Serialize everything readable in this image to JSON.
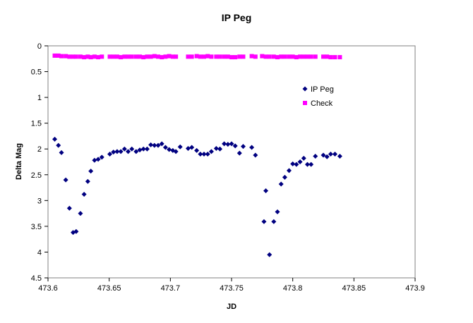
{
  "chart_data": {
    "type": "scatter",
    "title": "IP Peg",
    "xlabel": "JD",
    "ylabel": "Delta Mag",
    "xlim": [
      473.6,
      473.9
    ],
    "ylim": [
      0,
      4.5
    ],
    "y_inverted": true,
    "x_ticks": [
      473.6,
      473.65,
      473.7,
      473.75,
      473.8,
      473.85,
      473.9
    ],
    "x_tick_labels": [
      "473.6",
      "473.65",
      "473.7",
      "473.75",
      "473.8",
      "473.85",
      "473.9"
    ],
    "y_ticks": [
      0,
      0.5,
      1,
      1.5,
      2,
      2.5,
      3,
      3.5,
      4,
      4.5
    ],
    "y_tick_labels": [
      "0",
      "0.5",
      "1",
      "1.5",
      "2",
      "2.5",
      "3",
      "3.5",
      "4",
      "4.5"
    ],
    "grid": false,
    "legend_position": "right",
    "series": [
      {
        "name": "IP Peg",
        "color": "#000080",
        "marker": "diamond",
        "points": [
          [
            473.6055,
            1.81
          ],
          [
            473.6085,
            1.93
          ],
          [
            473.611,
            2.07
          ],
          [
            473.6145,
            2.6
          ],
          [
            473.6175,
            3.15
          ],
          [
            473.6205,
            3.62
          ],
          [
            473.623,
            3.6
          ],
          [
            473.6265,
            3.25
          ],
          [
            473.6295,
            2.88
          ],
          [
            473.6325,
            2.63
          ],
          [
            473.635,
            2.43
          ],
          [
            473.638,
            2.22
          ],
          [
            473.641,
            2.2
          ],
          [
            473.644,
            2.16
          ],
          [
            473.6505,
            2.1
          ],
          [
            473.6535,
            2.06
          ],
          [
            473.6565,
            2.05
          ],
          [
            473.6595,
            2.05
          ],
          [
            473.6625,
            2.0
          ],
          [
            473.6655,
            2.05
          ],
          [
            473.6685,
            2.0
          ],
          [
            473.672,
            2.05
          ],
          [
            473.675,
            2.02
          ],
          [
            473.678,
            2.0
          ],
          [
            473.681,
            2.0
          ],
          [
            473.684,
            1.92
          ],
          [
            473.687,
            1.93
          ],
          [
            473.69,
            1.93
          ],
          [
            473.693,
            1.9
          ],
          [
            473.696,
            1.97
          ],
          [
            473.699,
            2.01
          ],
          [
            473.702,
            2.03
          ],
          [
            473.7045,
            2.05
          ],
          [
            473.708,
            1.96
          ],
          [
            473.7145,
            1.99
          ],
          [
            473.7175,
            1.97
          ],
          [
            473.7215,
            2.03
          ],
          [
            473.7245,
            2.1
          ],
          [
            473.7275,
            2.1
          ],
          [
            473.7305,
            2.1
          ],
          [
            473.7335,
            2.05
          ],
          [
            473.7375,
            1.99
          ],
          [
            473.7405,
            2.0
          ],
          [
            473.744,
            1.9
          ],
          [
            473.747,
            1.91
          ],
          [
            473.75,
            1.9
          ],
          [
            473.753,
            1.94
          ],
          [
            473.7565,
            2.08
          ],
          [
            473.7595,
            1.95
          ],
          [
            473.7665,
            1.97
          ],
          [
            473.7695,
            2.12
          ],
          [
            473.7765,
            3.41
          ],
          [
            473.778,
            2.81
          ],
          [
            473.781,
            4.05
          ],
          [
            473.7845,
            3.41
          ],
          [
            473.7875,
            3.22
          ],
          [
            473.7905,
            2.68
          ],
          [
            473.7935,
            2.55
          ],
          [
            473.797,
            2.42
          ],
          [
            473.8,
            2.29
          ],
          [
            473.803,
            2.3
          ],
          [
            473.806,
            2.25
          ],
          [
            473.809,
            2.18
          ],
          [
            473.812,
            2.3
          ],
          [
            473.815,
            2.3
          ],
          [
            473.8185,
            2.14
          ],
          [
            473.825,
            2.12
          ],
          [
            473.828,
            2.15
          ],
          [
            473.831,
            2.1
          ],
          [
            473.8345,
            2.1
          ],
          [
            473.8385,
            2.14
          ]
        ]
      },
      {
        "name": "Check",
        "color": "#ff00ff",
        "marker": "square",
        "points": [
          [
            473.6055,
            0.19
          ],
          [
            473.6085,
            0.19
          ],
          [
            473.611,
            0.2
          ],
          [
            473.6145,
            0.2
          ],
          [
            473.6175,
            0.21
          ],
          [
            473.6205,
            0.21
          ],
          [
            473.623,
            0.21
          ],
          [
            473.6265,
            0.21
          ],
          [
            473.6295,
            0.22
          ],
          [
            473.6325,
            0.21
          ],
          [
            473.635,
            0.22
          ],
          [
            473.638,
            0.21
          ],
          [
            473.641,
            0.22
          ],
          [
            473.644,
            0.21
          ],
          [
            473.6505,
            0.21
          ],
          [
            473.6535,
            0.21
          ],
          [
            473.6565,
            0.21
          ],
          [
            473.6595,
            0.22
          ],
          [
            473.6625,
            0.21
          ],
          [
            473.6655,
            0.21
          ],
          [
            473.6685,
            0.21
          ],
          [
            473.672,
            0.21
          ],
          [
            473.675,
            0.21
          ],
          [
            473.678,
            0.22
          ],
          [
            473.681,
            0.21
          ],
          [
            473.684,
            0.21
          ],
          [
            473.687,
            0.2
          ],
          [
            473.69,
            0.21
          ],
          [
            473.693,
            0.22
          ],
          [
            473.696,
            0.21
          ],
          [
            473.699,
            0.2
          ],
          [
            473.702,
            0.21
          ],
          [
            473.7045,
            0.21
          ],
          [
            473.7145,
            0.21
          ],
          [
            473.7175,
            0.21
          ],
          [
            473.7215,
            0.2
          ],
          [
            473.7245,
            0.21
          ],
          [
            473.7275,
            0.21
          ],
          [
            473.7305,
            0.2
          ],
          [
            473.7335,
            0.21
          ],
          [
            473.7375,
            0.21
          ],
          [
            473.7405,
            0.21
          ],
          [
            473.744,
            0.21
          ],
          [
            473.747,
            0.21
          ],
          [
            473.75,
            0.22
          ],
          [
            473.753,
            0.22
          ],
          [
            473.7565,
            0.21
          ],
          [
            473.7595,
            0.21
          ],
          [
            473.7665,
            0.2
          ],
          [
            473.7695,
            0.21
          ],
          [
            473.775,
            0.2
          ],
          [
            473.778,
            0.21
          ],
          [
            473.781,
            0.21
          ],
          [
            473.7845,
            0.21
          ],
          [
            473.7875,
            0.22
          ],
          [
            473.7905,
            0.21
          ],
          [
            473.7935,
            0.21
          ],
          [
            473.797,
            0.21
          ],
          [
            473.8,
            0.21
          ],
          [
            473.803,
            0.22
          ],
          [
            473.806,
            0.21
          ],
          [
            473.809,
            0.21
          ],
          [
            473.812,
            0.21
          ],
          [
            473.815,
            0.21
          ],
          [
            473.8185,
            0.21
          ],
          [
            473.825,
            0.21
          ],
          [
            473.828,
            0.21
          ],
          [
            473.831,
            0.22
          ],
          [
            473.8345,
            0.22
          ],
          [
            473.8385,
            0.22
          ]
        ]
      }
    ]
  }
}
